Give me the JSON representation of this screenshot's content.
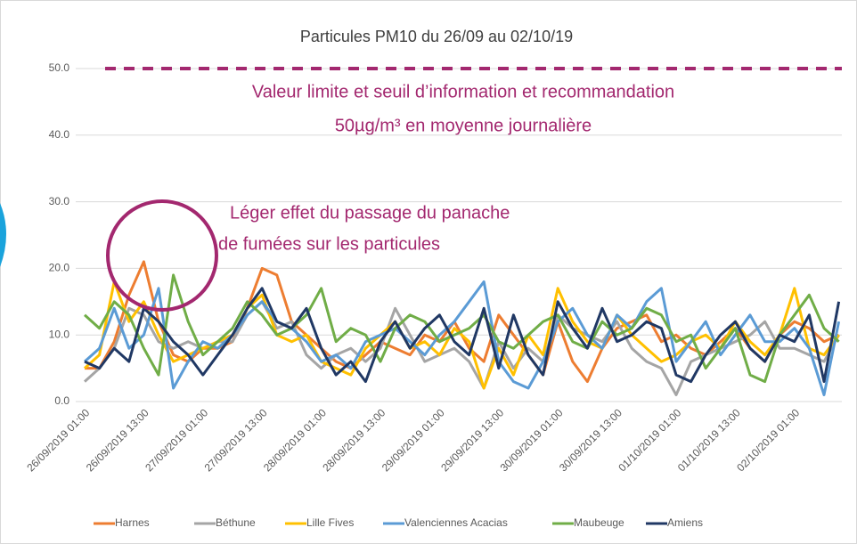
{
  "chart_data": {
    "type": "line",
    "title": "Particules PM10 du 26/09 au 02/10/19",
    "annotations": [
      "Valeur limite et seuil d’information et recommandation",
      "50µg/m³ en moyenne journalière",
      "Léger effet du passage du panache",
      "de fumées sur les particules"
    ],
    "limit_line": {
      "value": 50,
      "color": "#a3286f"
    },
    "categories": [
      "26/09/2019 01:00",
      null,
      null,
      null,
      "26/09/2019 13:00",
      null,
      null,
      null,
      "27/09/2019 01:00",
      null,
      null,
      null,
      "27/09/2019 13:00",
      null,
      null,
      null,
      "28/09/2019 01:00",
      null,
      null,
      null,
      "28/09/2019 13:00",
      null,
      null,
      null,
      "29/09/2019 01:00",
      null,
      null,
      null,
      "29/09/2019 13:00",
      null,
      null,
      null,
      "30/09/2019 01:00",
      null,
      null,
      null,
      "30/09/2019 13:00",
      null,
      null,
      null,
      "01/10/2019 01:00",
      null,
      null,
      null,
      "01/10/2019 13:00",
      null,
      null,
      null,
      "02/10/2019 01:00",
      null,
      null,
      null
    ],
    "ylim": [
      0,
      50
    ],
    "yticks": [
      {
        "value": 0,
        "label": "0.0"
      },
      {
        "value": 10,
        "label": "10.0"
      },
      {
        "value": 20,
        "label": "20.0"
      },
      {
        "value": 30,
        "label": "30.0"
      },
      {
        "value": 40,
        "label": "40.0"
      },
      {
        "value": 50,
        "label": "50.0"
      }
    ],
    "grid": true,
    "legend": "bottom",
    "series": [
      {
        "name": "Harnes",
        "color": "#ed7d31",
        "values": [
          5,
          5,
          9,
          16,
          21,
          12,
          7,
          6,
          8,
          8,
          9,
          14,
          20,
          19,
          12,
          10,
          8,
          6,
          5,
          7,
          9,
          8,
          7,
          10,
          9,
          12,
          8,
          6,
          13,
          10,
          7,
          4,
          12,
          6,
          3,
          8,
          11,
          12,
          13,
          9,
          10,
          8,
          7,
          9,
          11,
          8,
          6,
          10,
          12,
          11,
          9,
          10
        ]
      },
      {
        "name": "Béthune",
        "color": "#a5a5a5",
        "values": [
          3,
          5,
          8,
          14,
          13,
          9,
          8,
          9,
          8,
          9,
          9,
          13,
          15,
          11,
          12,
          7,
          5,
          7,
          8,
          6,
          8,
          14,
          10,
          6,
          7,
          8,
          6,
          2,
          9,
          5,
          8,
          6,
          13,
          11,
          10,
          9,
          12,
          8,
          6,
          5,
          1,
          6,
          7,
          8,
          9,
          10,
          12,
          8,
          8,
          7,
          6,
          10
        ]
      },
      {
        "name": "Lille Fives",
        "color": "#ffc000",
        "values": [
          5,
          7,
          18,
          12,
          15,
          10,
          6,
          7,
          8,
          9,
          10,
          14,
          16,
          10,
          9,
          10,
          6,
          5,
          4,
          8,
          10,
          12,
          8,
          9,
          7,
          11,
          9,
          2,
          8,
          4,
          10,
          7,
          17,
          12,
          9,
          8,
          13,
          10,
          8,
          6,
          7,
          9,
          10,
          8,
          12,
          9,
          7,
          10,
          17,
          8,
          7,
          10
        ]
      },
      {
        "name": "Valenciennes Acacias",
        "color": "#5b9bd5",
        "values": [
          6,
          8,
          14,
          8,
          10,
          17,
          2,
          6,
          9,
          8,
          10,
          13,
          15,
          12,
          11,
          9,
          6,
          7,
          5,
          9,
          10,
          11,
          9,
          7,
          10,
          12,
          15,
          18,
          6,
          3,
          2,
          6,
          12,
          14,
          10,
          8,
          13,
          11,
          15,
          17,
          6,
          9,
          12,
          7,
          10,
          13,
          9,
          9,
          11,
          8,
          1,
          12
        ]
      },
      {
        "name": "Maubeuge",
        "color": "#70ad47",
        "values": [
          13,
          11,
          15,
          13,
          8,
          4,
          19,
          12,
          7,
          9,
          11,
          15,
          13,
          10,
          11,
          13,
          17,
          9,
          11,
          10,
          6,
          11,
          13,
          12,
          9,
          10,
          11,
          13,
          9,
          8,
          10,
          12,
          13,
          9,
          8,
          12,
          10,
          11,
          14,
          13,
          9,
          10,
          5,
          8,
          11,
          4,
          3,
          10,
          13,
          16,
          11,
          9
        ]
      },
      {
        "name": "Amiens",
        "color": "#203864",
        "values": [
          6,
          5,
          8,
          6,
          14,
          12,
          9,
          7,
          4,
          7,
          10,
          14,
          17,
          12,
          11,
          14,
          8,
          4,
          6,
          3,
          9,
          12,
          8,
          11,
          13,
          9,
          7,
          14,
          5,
          13,
          7,
          4,
          15,
          11,
          8,
          14,
          9,
          10,
          12,
          11,
          4,
          3,
          7,
          10,
          12,
          8,
          6,
          10,
          9,
          13,
          3,
          15
        ]
      }
    ]
  }
}
